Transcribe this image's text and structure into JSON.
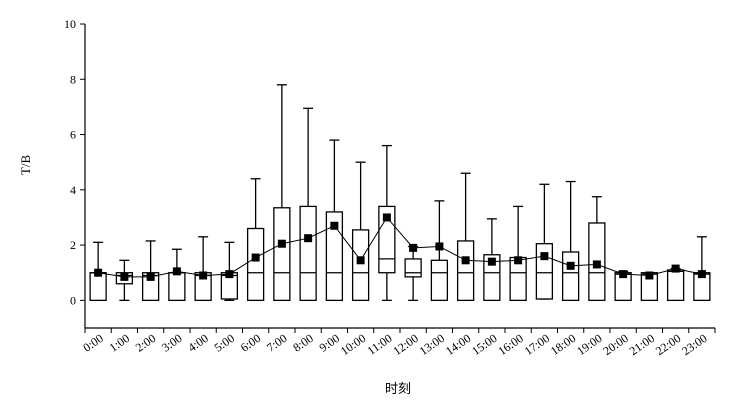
{
  "chart_data": {
    "type": "box",
    "ylabel": "T/B",
    "xlabel": "时刻",
    "ylim": [
      -1,
      10
    ],
    "yticks": [
      0,
      2,
      4,
      6,
      8,
      10
    ],
    "categories": [
      "0:00",
      "1:00",
      "2:00",
      "3:00",
      "4:00",
      "5:00",
      "6:00",
      "7:00",
      "8:00",
      "9:00",
      "10:00",
      "11:00",
      "12:00",
      "13:00",
      "14:00",
      "15:00",
      "16:00",
      "17:00",
      "18:00",
      "19:00",
      "20:00",
      "21:00",
      "22:00",
      "23:00"
    ],
    "boxes": [
      {
        "min": 0,
        "q1": 0,
        "median": 1,
        "q3": 1,
        "max": 2.1,
        "mean": 1.0
      },
      {
        "min": 0,
        "q1": 0.6,
        "median": 0.9,
        "q3": 1.0,
        "max": 1.45,
        "mean": 0.85
      },
      {
        "min": 0,
        "q1": 0,
        "median": 0.9,
        "q3": 1.0,
        "max": 2.15,
        "mean": 0.85
      },
      {
        "min": 0,
        "q1": 0,
        "median": 1,
        "q3": 1.0,
        "max": 1.85,
        "mean": 1.05
      },
      {
        "min": 0,
        "q1": 0,
        "median": 0.9,
        "q3": 1.0,
        "max": 2.3,
        "mean": 0.9
      },
      {
        "min": 0,
        "q1": 0.05,
        "median": 0.9,
        "q3": 1.0,
        "max": 2.1,
        "mean": 0.95
      },
      {
        "min": 0,
        "q1": 0,
        "median": 1,
        "q3": 2.6,
        "max": 4.4,
        "mean": 1.55
      },
      {
        "min": 0,
        "q1": 0,
        "median": 1,
        "q3": 3.35,
        "max": 7.8,
        "mean": 2.05
      },
      {
        "min": 0,
        "q1": 0,
        "median": 1,
        "q3": 3.4,
        "max": 6.95,
        "mean": 2.25
      },
      {
        "min": 0,
        "q1": 0,
        "median": 1,
        "q3": 3.2,
        "max": 5.8,
        "mean": 2.7
      },
      {
        "min": 0,
        "q1": 0,
        "median": 1,
        "q3": 2.55,
        "max": 5.0,
        "mean": 1.45
      },
      {
        "min": 0,
        "q1": 1.0,
        "median": 1.5,
        "q3": 3.4,
        "max": 5.6,
        "mean": 3.0
      },
      {
        "min": 0,
        "q1": 0.85,
        "median": 1,
        "q3": 1.5,
        "max": 1.95,
        "mean": 1.9
      },
      {
        "min": 0,
        "q1": 0,
        "median": 1,
        "q3": 1.45,
        "max": 3.6,
        "mean": 1.95
      },
      {
        "min": 0,
        "q1": 0,
        "median": 1,
        "q3": 2.15,
        "max": 4.6,
        "mean": 1.45
      },
      {
        "min": 0,
        "q1": 0,
        "median": 1,
        "q3": 1.65,
        "max": 2.95,
        "mean": 1.4
      },
      {
        "min": 0,
        "q1": 0,
        "median": 1,
        "q3": 1.55,
        "max": 3.4,
        "mean": 1.45
      },
      {
        "min": 0.05,
        "q1": 0.05,
        "median": 1,
        "q3": 2.05,
        "max": 4.2,
        "mean": 1.6
      },
      {
        "min": 0,
        "q1": 0,
        "median": 1,
        "q3": 1.75,
        "max": 4.3,
        "mean": 1.25
      },
      {
        "min": 0,
        "q1": 0,
        "median": 1,
        "q3": 2.8,
        "max": 3.75,
        "mean": 1.3
      },
      {
        "min": 0,
        "q1": 0,
        "median": 0.95,
        "q3": 1.0,
        "max": 1.05,
        "mean": 0.95
      },
      {
        "min": 0,
        "q1": 0,
        "median": 0.95,
        "q3": 1.0,
        "max": 1.0,
        "mean": 0.9
      },
      {
        "min": 0,
        "q1": 0,
        "median": 1.05,
        "q3": 1.1,
        "max": 1.15,
        "mean": 1.15
      },
      {
        "min": 0,
        "q1": 0,
        "median": 0.95,
        "q3": 1.0,
        "max": 2.3,
        "mean": 0.95
      }
    ],
    "grid": false,
    "mean_marker": "filled-square",
    "mean_line": true
  }
}
